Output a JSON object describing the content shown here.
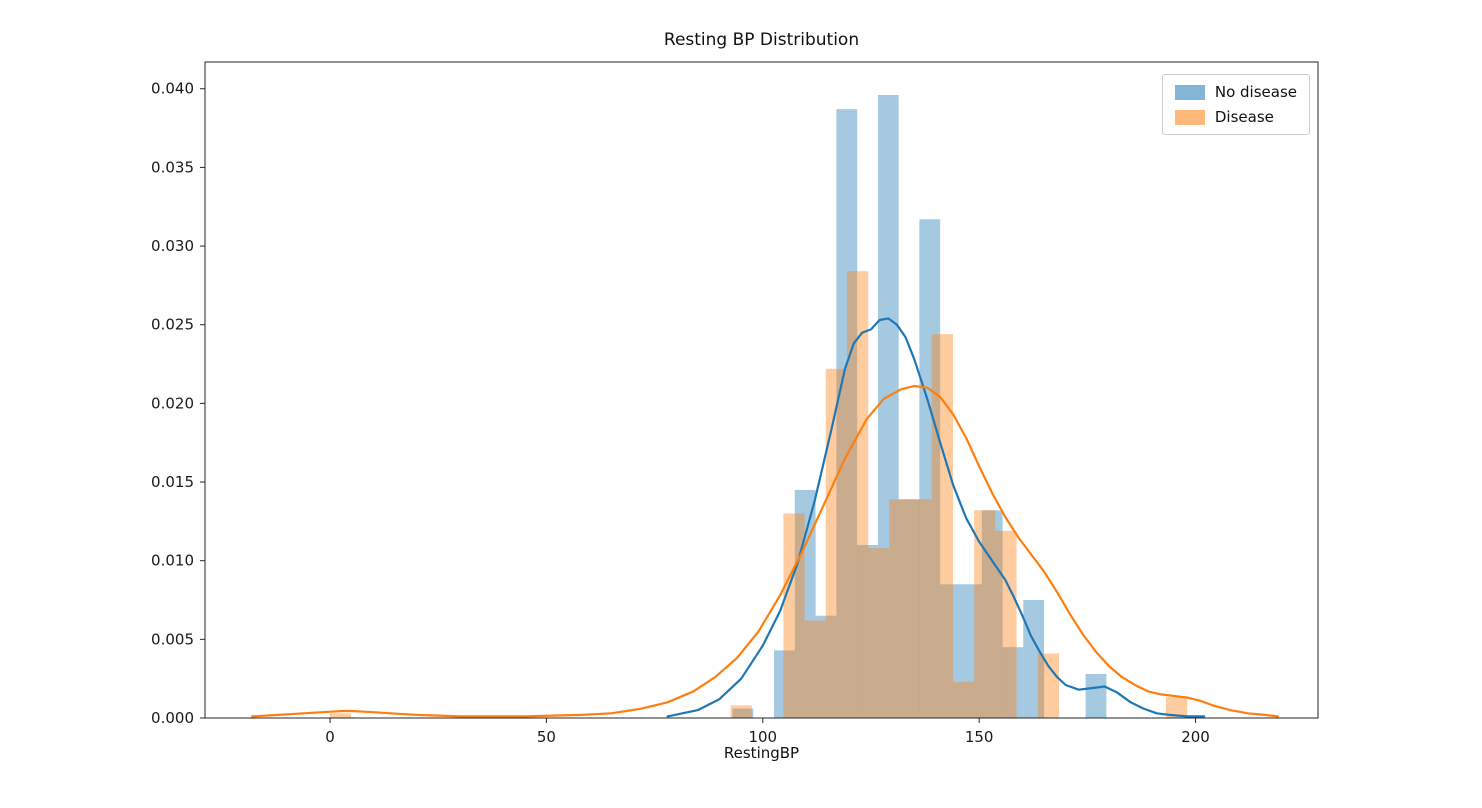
{
  "chart_data": {
    "type": "bar",
    "subtype": "histogram_with_kde",
    "title": "Resting BP Distribution",
    "xlabel": "RestingBP",
    "ylabel": "",
    "xlim": [
      -28.9,
      228.3
    ],
    "ylim": [
      0,
      0.0417
    ],
    "x_ticks": [
      0,
      50,
      100,
      150,
      200
    ],
    "x_tick_labels": [
      "0",
      "50",
      "100",
      "150",
      "200"
    ],
    "y_ticks": [
      0,
      0.005,
      0.01,
      0.015,
      0.02,
      0.025,
      0.03,
      0.035,
      0.04
    ],
    "y_tick_labels": [
      "0.000",
      "0.005",
      "0.010",
      "0.015",
      "0.020",
      "0.025",
      "0.030",
      "0.035",
      "0.040"
    ],
    "grid": false,
    "legend_position": "upper right",
    "series": [
      {
        "name": "No disease",
        "color": "#1f77b4",
        "bar_alpha": 0.4,
        "bar_width": 4.8,
        "bars": [
          [
            95.4,
            0.0006
          ],
          [
            105.0,
            0.0043
          ],
          [
            109.8,
            0.0145
          ],
          [
            114.6,
            0.0065
          ],
          [
            119.4,
            0.0387
          ],
          [
            124.2,
            0.011
          ],
          [
            129.0,
            0.0396
          ],
          [
            133.8,
            0.0139
          ],
          [
            138.6,
            0.0317
          ],
          [
            143.4,
            0.0085
          ],
          [
            148.2,
            0.0085
          ],
          [
            153.0,
            0.0132
          ],
          [
            157.8,
            0.0045
          ],
          [
            162.6,
            0.0075
          ],
          [
            177.0,
            0.0028
          ]
        ],
        "kde": [
          [
            78,
            0.0001
          ],
          [
            85,
            0.0005
          ],
          [
            90,
            0.0012
          ],
          [
            95,
            0.0025
          ],
          [
            100,
            0.0046
          ],
          [
            104,
            0.0068
          ],
          [
            108,
            0.0098
          ],
          [
            112,
            0.0138
          ],
          [
            116,
            0.0185
          ],
          [
            119,
            0.0222
          ],
          [
            121,
            0.0238
          ],
          [
            123,
            0.0245
          ],
          [
            125,
            0.0247
          ],
          [
            127,
            0.0253
          ],
          [
            129,
            0.0254
          ],
          [
            131,
            0.025
          ],
          [
            133,
            0.0242
          ],
          [
            135,
            0.0228
          ],
          [
            138,
            0.0203
          ],
          [
            141,
            0.0175
          ],
          [
            144,
            0.0148
          ],
          [
            147,
            0.0127
          ],
          [
            150,
            0.0112
          ],
          [
            153,
            0.01
          ],
          [
            156,
            0.0088
          ],
          [
            158,
            0.0077
          ],
          [
            160,
            0.0065
          ],
          [
            162,
            0.0052
          ],
          [
            164,
            0.0042
          ],
          [
            166,
            0.0033
          ],
          [
            168,
            0.0026
          ],
          [
            170,
            0.0021
          ],
          [
            173,
            0.0018
          ],
          [
            176,
            0.0019
          ],
          [
            179,
            0.002
          ],
          [
            182,
            0.0016
          ],
          [
            185,
            0.001
          ],
          [
            188,
            0.0006
          ],
          [
            191,
            0.0003
          ],
          [
            194,
            0.0002
          ],
          [
            198,
            0.0001
          ],
          [
            202,
            0.0001
          ]
        ]
      },
      {
        "name": "Disease",
        "color": "#ff7f0e",
        "bar_alpha": 0.4,
        "bar_width": 4.9,
        "bars": [
          [
            2.4,
            0.0003
          ],
          [
            95.0,
            0.0008
          ],
          [
            107.2,
            0.013
          ],
          [
            112.1,
            0.0062
          ],
          [
            117.0,
            0.0222
          ],
          [
            121.9,
            0.0284
          ],
          [
            126.8,
            0.0108
          ],
          [
            131.7,
            0.0139
          ],
          [
            136.6,
            0.0139
          ],
          [
            141.5,
            0.0244
          ],
          [
            146.4,
            0.0023
          ],
          [
            151.3,
            0.0132
          ],
          [
            156.2,
            0.0119
          ],
          [
            166.0,
            0.0041
          ],
          [
            195.6,
            0.0013
          ]
        ],
        "kde": [
          [
            -18,
            0.0001
          ],
          [
            -12,
            0.0002
          ],
          [
            -6,
            0.0003
          ],
          [
            0,
            0.0004
          ],
          [
            4,
            0.00045
          ],
          [
            8,
            0.0004
          ],
          [
            14,
            0.0003
          ],
          [
            20,
            0.0002
          ],
          [
            30,
            0.0001
          ],
          [
            45,
            0.0001
          ],
          [
            58,
            0.0002
          ],
          [
            65,
            0.0003
          ],
          [
            72,
            0.0006
          ],
          [
            78,
            0.001
          ],
          [
            84,
            0.0017
          ],
          [
            89,
            0.0026
          ],
          [
            94,
            0.0038
          ],
          [
            99,
            0.0055
          ],
          [
            104,
            0.0078
          ],
          [
            109,
            0.0105
          ],
          [
            114,
            0.0135
          ],
          [
            119,
            0.0165
          ],
          [
            124,
            0.019
          ],
          [
            128,
            0.0203
          ],
          [
            132,
            0.0209
          ],
          [
            135,
            0.0211
          ],
          [
            138,
            0.021
          ],
          [
            141,
            0.0204
          ],
          [
            144,
            0.0193
          ],
          [
            147,
            0.0178
          ],
          [
            150,
            0.016
          ],
          [
            153,
            0.0143
          ],
          [
            156,
            0.0128
          ],
          [
            159,
            0.0115
          ],
          [
            162,
            0.0104
          ],
          [
            165,
            0.0093
          ],
          [
            168,
            0.008
          ],
          [
            171,
            0.0066
          ],
          [
            174,
            0.0053
          ],
          [
            177,
            0.0042
          ],
          [
            180,
            0.0033
          ],
          [
            183,
            0.0026
          ],
          [
            186,
            0.0021
          ],
          [
            189,
            0.0017
          ],
          [
            192,
            0.0015
          ],
          [
            195,
            0.0014
          ],
          [
            198,
            0.0013
          ],
          [
            201,
            0.0011
          ],
          [
            204,
            0.0008
          ],
          [
            208,
            0.0005
          ],
          [
            212,
            0.0003
          ],
          [
            216,
            0.0002
          ],
          [
            219,
            0.0001
          ]
        ]
      }
    ]
  }
}
